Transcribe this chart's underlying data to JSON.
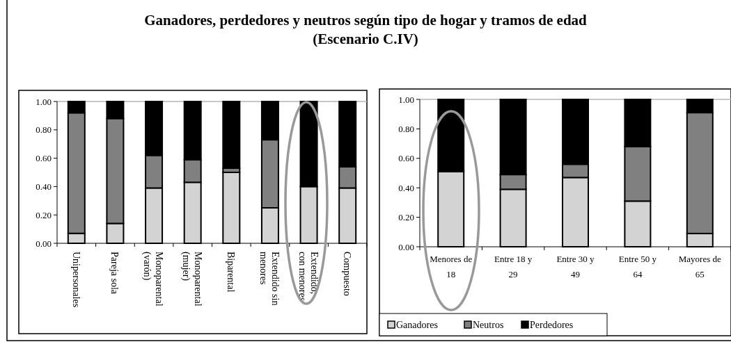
{
  "chart_data": [
    {
      "type": "bar",
      "title": "Ganadores, perdedores y neutros según tipo de hogar y tramos de edad (Escenario C.IV)",
      "stacked": true,
      "categories": [
        "Unipersonales",
        "Pareja sola",
        "Monoparental (varón)",
        "Monoparental (mujer)",
        "Biparental",
        "Extendido sin menores",
        "Extendido, con menores",
        "Compuesto"
      ],
      "series": [
        {
          "color": "#d3d3d3",
          "values": [
            0.07,
            0.14,
            0.39,
            0.43,
            0.5,
            0.25,
            0.4,
            0.39
          ]
        },
        {
          "color": "#808080",
          "values": [
            0.85,
            0.74,
            0.23,
            0.16,
            0.03,
            0.48,
            0,
            0.15
          ]
        },
        {
          "color": "#000000",
          "values": [
            0.08,
            0.12,
            0.38,
            0.41,
            0.47,
            0.27,
            0.6,
            0.46
          ]
        }
      ],
      "ylim": [
        0,
        1
      ],
      "yticks": [
        {
          "value": 0,
          "label": "0.00"
        },
        {
          "value": 0.2,
          "label": "0.20"
        },
        {
          "value": 0.4,
          "label": "0.40"
        },
        {
          "value": 0.6,
          "label": "0.60"
        },
        {
          "value": 0.8,
          "label": "0.80"
        },
        {
          "value": 1,
          "label": "1.00"
        }
      ],
      "legend": false
    },
    {
      "type": "bar",
      "stacked": true,
      "categories": [
        "Menores de 18",
        "Entre 18 y 29",
        "Entre 30 y 49",
        "Entre 50 y 64",
        "Mayores de 65"
      ],
      "series": [
        {
          "name": "Ganadores",
          "color": "#d3d3d3",
          "values": [
            0.51,
            0.39,
            0.47,
            0.31,
            0.09
          ]
        },
        {
          "name": "Neutros",
          "color": "#808080",
          "values": [
            0,
            0.1,
            0.09,
            0.37,
            0.82
          ]
        },
        {
          "name": "Perdedores",
          "color": "#000000",
          "values": [
            0.49,
            0.51,
            0.44,
            0.32,
            0.09
          ]
        }
      ],
      "ylim": [
        0,
        1
      ],
      "yticks": [
        {
          "value": 0,
          "label": "0.00"
        },
        {
          "value": 0.2,
          "label": "0.20"
        },
        {
          "value": 0.4,
          "label": "0.40"
        },
        {
          "value": 0.6,
          "label": "0.60"
        },
        {
          "value": 0.8,
          "label": "0.80"
        },
        {
          "value": 1,
          "label": "1.00"
        }
      ],
      "legend": "bottom left"
    }
  ]
}
